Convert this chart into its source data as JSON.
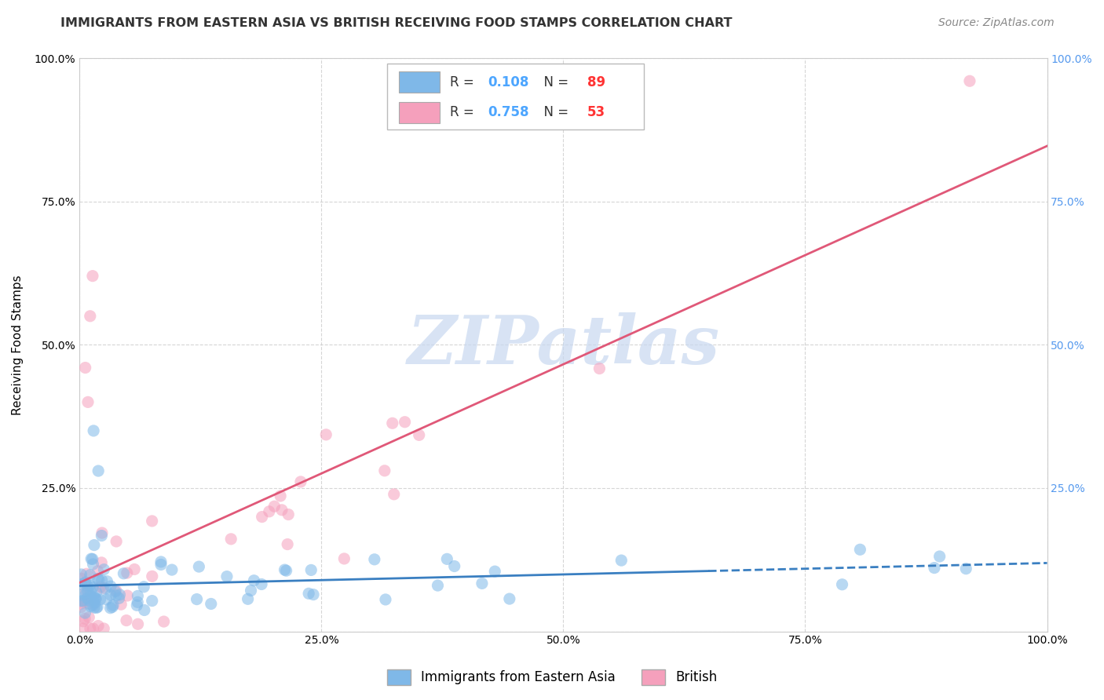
{
  "title": "IMMIGRANTS FROM EASTERN ASIA VS BRITISH RECEIVING FOOD STAMPS CORRELATION CHART",
  "source": "Source: ZipAtlas.com",
  "ylabel": "Receiving Food Stamps",
  "xlim": [
    0,
    100
  ],
  "ylim": [
    0,
    100
  ],
  "xticklabels": [
    "0.0%",
    "25.0%",
    "50.0%",
    "75.0%",
    "100.0%"
  ],
  "yticklabels_left": [
    "",
    "25.0%",
    "50.0%",
    "75.0%",
    "100.0%"
  ],
  "yticklabels_right": [
    "",
    "25.0%",
    "50.0%",
    "75.0%",
    "100.0%"
  ],
  "series1_label": "Immigrants from Eastern Asia",
  "series1_color": "#7fb8e8",
  "series1_edge": "#5a9fd4",
  "series1_R": "0.108",
  "series1_N": "89",
  "series1_line_color": "#3a7fc1",
  "series2_label": "British",
  "series2_color": "#f5a0bc",
  "series2_edge": "#e8729a",
  "series2_R": "0.758",
  "series2_N": "53",
  "series2_line_color": "#e05878",
  "watermark": "ZIPatlas",
  "watermark_color": "#c8d8f0",
  "background_color": "#ffffff",
  "grid_color": "#cccccc",
  "legend_r_color": "#4da6ff",
  "legend_n_color": "#ff3333",
  "right_tick_color": "#5599ee"
}
